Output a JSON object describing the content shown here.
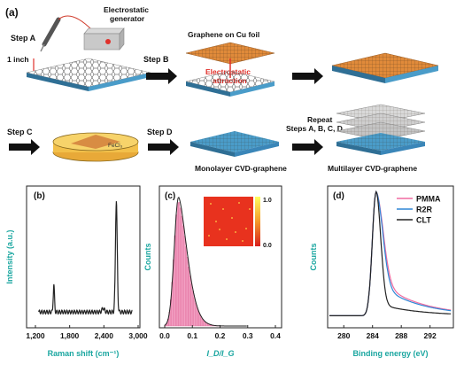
{
  "top": {
    "panel_label": "(a)",
    "step_a": "Step A",
    "generator": "Electrostatic generator",
    "generator_line1": "Electrostatic",
    "generator_line2": "generator",
    "one_inch": "1 inch",
    "step_b": "Step B",
    "graphene_cu": "Graphene on Cu foil",
    "attraction_line1": "Electrostatic",
    "attraction_line2": "attraction",
    "step_c": "Step C",
    "fecl3": "FeCl₃",
    "step_d": "Step D",
    "monolayer": "Monolayer CVD-graphene",
    "repeat_line1": "Repeat",
    "repeat_line2": "Steps A, B, C, D",
    "multilayer": "Multilayer CVD-graphene"
  },
  "colors": {
    "teal": "#1aa6a0",
    "substrate_blue": "#3a86b8",
    "copper": "#e08a3a",
    "pink": "#f06aa0",
    "blue_line": "#2f86d6",
    "red": "#e0302a"
  },
  "chart_data": [
    {
      "panel": "(b)",
      "type": "line",
      "xlabel": "Raman shift (cm⁻¹)",
      "ylabel": "Intensity (a.u.)",
      "xlim": [
        1200,
        3000
      ],
      "xticks": [
        "1,200",
        "1,800",
        "2,400",
        "3,000"
      ],
      "peaks": [
        {
          "x": 1585,
          "height": 0.22
        },
        {
          "x": 2680,
          "height": 0.9
        }
      ],
      "minor_peak": {
        "x": 2450,
        "height": 0.03
      }
    },
    {
      "panel": "(c)",
      "type": "bar",
      "xlabel": "I_D/I_G",
      "ylabel": "Counts",
      "xlim": [
        0.0,
        0.4
      ],
      "xticks": [
        "0.0",
        "0.1",
        "0.2",
        "0.3",
        "0.4"
      ],
      "inset_colorbar_ticks": [
        "1.0",
        "0.0"
      ],
      "distribution": {
        "mode": 0.05,
        "tail_to": 0.28
      }
    },
    {
      "panel": "(d)",
      "type": "line",
      "xlabel": "Binding energy (eV)",
      "ylabel": "Counts",
      "xlim": [
        278,
        295
      ],
      "xticks": [
        "280",
        "284",
        "288",
        "292"
      ],
      "series": [
        {
          "name": "PMMA",
          "color": "#f06aa0"
        },
        {
          "name": "R2R",
          "color": "#2f86d6"
        },
        {
          "name": "CLT",
          "color": "#222222"
        }
      ],
      "peak_x": 284.5
    }
  ]
}
